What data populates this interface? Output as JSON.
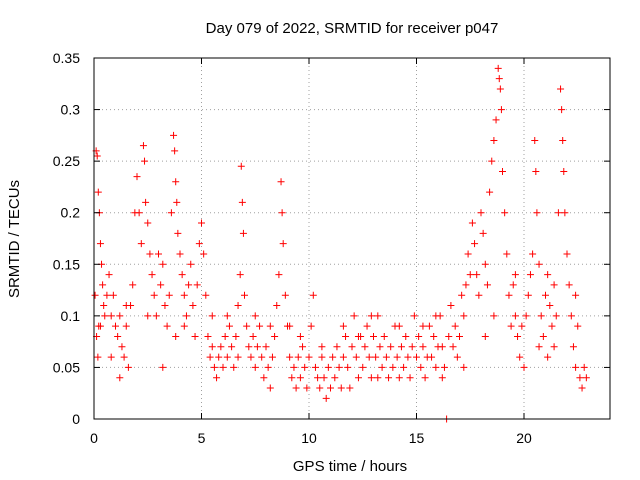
{
  "chart_data": {
    "type": "scatter",
    "title": "Day 079 of 2022, SRMTID for receiver p047",
    "xlabel": "GPS time / hours",
    "ylabel": "SRMTID / TECUs",
    "xlim": [
      0,
      24
    ],
    "ylim": [
      0,
      0.35
    ],
    "x_ticks": [
      0,
      5,
      10,
      15,
      20
    ],
    "x_tick_labels": [
      "0",
      "5",
      "10",
      "15",
      "20"
    ],
    "y_ticks": [
      0,
      0.05,
      0.1,
      0.15,
      0.2,
      0.25,
      0.3,
      0.35
    ],
    "y_tick_labels": [
      "0",
      "0.05",
      "0.1",
      "0.15",
      "0.2",
      "0.25",
      "0.3",
      "0.35"
    ],
    "grid": true,
    "marker": "+",
    "marker_color": "#ff0000",
    "series": [
      {
        "name": "SRMTID",
        "points": [
          [
            0.05,
            0.12
          ],
          [
            0.1,
            0.26
          ],
          [
            0.15,
            0.255
          ],
          [
            0.2,
            0.22
          ],
          [
            0.25,
            0.2
          ],
          [
            0.3,
            0.17
          ],
          [
            0.35,
            0.15
          ],
          [
            0.4,
            0.13
          ],
          [
            0.45,
            0.11
          ],
          [
            0.5,
            0.1
          ],
          [
            0.12,
            0.08
          ],
          [
            0.18,
            0.06
          ],
          [
            0.22,
            0.09
          ],
          [
            0.6,
            0.12
          ],
          [
            0.7,
            0.14
          ],
          [
            0.8,
            0.1
          ],
          [
            0.9,
            0.12
          ],
          [
            1.0,
            0.09
          ],
          [
            1.1,
            0.08
          ],
          [
            1.2,
            0.04
          ],
          [
            1.3,
            0.07
          ],
          [
            1.4,
            0.06
          ],
          [
            1.5,
            0.09
          ],
          [
            1.6,
            0.05
          ],
          [
            1.7,
            0.11
          ],
          [
            1.8,
            0.13
          ],
          [
            1.9,
            0.2
          ],
          [
            2.0,
            0.235
          ],
          [
            2.1,
            0.2
          ],
          [
            2.2,
            0.17
          ],
          [
            2.3,
            0.265
          ],
          [
            2.35,
            0.25
          ],
          [
            2.4,
            0.21
          ],
          [
            2.5,
            0.19
          ],
          [
            2.6,
            0.16
          ],
          [
            2.7,
            0.14
          ],
          [
            2.8,
            0.12
          ],
          [
            2.9,
            0.1
          ],
          [
            3.0,
            0.16
          ],
          [
            3.1,
            0.13
          ],
          [
            3.2,
            0.15
          ],
          [
            3.3,
            0.11
          ],
          [
            3.4,
            0.09
          ],
          [
            3.5,
            0.12
          ],
          [
            3.6,
            0.2
          ],
          [
            3.7,
            0.275
          ],
          [
            3.75,
            0.26
          ],
          [
            3.8,
            0.23
          ],
          [
            3.85,
            0.21
          ],
          [
            3.9,
            0.18
          ],
          [
            4.0,
            0.16
          ],
          [
            4.1,
            0.14
          ],
          [
            4.2,
            0.12
          ],
          [
            4.3,
            0.1
          ],
          [
            4.4,
            0.13
          ],
          [
            4.5,
            0.15
          ],
          [
            4.6,
            0.11
          ],
          [
            4.7,
            0.08
          ],
          [
            4.8,
            0.13
          ],
          [
            4.9,
            0.17
          ],
          [
            5.0,
            0.19
          ],
          [
            5.1,
            0.16
          ],
          [
            5.2,
            0.12
          ],
          [
            5.3,
            0.08
          ],
          [
            5.4,
            0.06
          ],
          [
            5.5,
            0.07
          ],
          [
            5.6,
            0.05
          ],
          [
            5.7,
            0.04
          ],
          [
            5.8,
            0.06
          ],
          [
            5.9,
            0.07
          ],
          [
            6.0,
            0.05
          ],
          [
            6.1,
            0.08
          ],
          [
            6.2,
            0.06
          ],
          [
            6.3,
            0.09
          ],
          [
            6.4,
            0.07
          ],
          [
            6.5,
            0.05
          ],
          [
            6.6,
            0.08
          ],
          [
            6.7,
            0.11
          ],
          [
            6.8,
            0.14
          ],
          [
            6.85,
            0.245
          ],
          [
            6.9,
            0.21
          ],
          [
            6.95,
            0.18
          ],
          [
            7.0,
            0.12
          ],
          [
            7.1,
            0.09
          ],
          [
            7.2,
            0.07
          ],
          [
            7.3,
            0.06
          ],
          [
            7.4,
            0.08
          ],
          [
            7.5,
            0.05
          ],
          [
            7.6,
            0.07
          ],
          [
            7.7,
            0.09
          ],
          [
            7.8,
            0.06
          ],
          [
            7.9,
            0.04
          ],
          [
            8.0,
            0.07
          ],
          [
            8.1,
            0.05
          ],
          [
            8.2,
            0.03
          ],
          [
            8.3,
            0.06
          ],
          [
            8.4,
            0.08
          ],
          [
            8.5,
            0.11
          ],
          [
            8.6,
            0.14
          ],
          [
            8.7,
            0.23
          ],
          [
            8.75,
            0.2
          ],
          [
            8.8,
            0.17
          ],
          [
            8.9,
            0.12
          ],
          [
            9.0,
            0.09
          ],
          [
            9.1,
            0.06
          ],
          [
            9.2,
            0.04
          ],
          [
            9.3,
            0.05
          ],
          [
            9.4,
            0.03
          ],
          [
            9.5,
            0.06
          ],
          [
            9.6,
            0.04
          ],
          [
            9.7,
            0.07
          ],
          [
            9.8,
            0.05
          ],
          [
            9.9,
            0.03
          ],
          [
            10.0,
            0.06
          ],
          [
            10.1,
            0.09
          ],
          [
            10.2,
            0.12
          ],
          [
            10.3,
            0.05
          ],
          [
            10.4,
            0.04
          ],
          [
            10.5,
            0.03
          ],
          [
            10.6,
            0.06
          ],
          [
            10.7,
            0.04
          ],
          [
            10.8,
            0.02
          ],
          [
            10.9,
            0.05
          ],
          [
            11.0,
            0.03
          ],
          [
            11.1,
            0.06
          ],
          [
            11.2,
            0.04
          ],
          [
            11.3,
            0.07
          ],
          [
            11.4,
            0.05
          ],
          [
            11.5,
            0.03
          ],
          [
            11.6,
            0.06
          ],
          [
            11.7,
            0.08
          ],
          [
            11.8,
            0.05
          ],
          [
            11.9,
            0.03
          ],
          [
            12.0,
            0.07
          ],
          [
            12.1,
            0.1
          ],
          [
            12.2,
            0.06
          ],
          [
            12.3,
            0.04
          ],
          [
            12.4,
            0.08
          ],
          [
            12.5,
            0.05
          ],
          [
            12.6,
            0.07
          ],
          [
            12.7,
            0.09
          ],
          [
            12.8,
            0.06
          ],
          [
            12.9,
            0.04
          ],
          [
            13.0,
            0.08
          ],
          [
            13.1,
            0.06
          ],
          [
            13.2,
            0.1
          ],
          [
            13.3,
            0.07
          ],
          [
            13.4,
            0.05
          ],
          [
            13.5,
            0.08
          ],
          [
            13.6,
            0.06
          ],
          [
            13.7,
            0.04
          ],
          [
            13.8,
            0.07
          ],
          [
            13.9,
            0.05
          ],
          [
            14.0,
            0.09
          ],
          [
            14.1,
            0.06
          ],
          [
            14.2,
            0.04
          ],
          [
            14.3,
            0.07
          ],
          [
            14.4,
            0.05
          ],
          [
            14.5,
            0.08
          ],
          [
            14.6,
            0.06
          ],
          [
            14.7,
            0.04
          ],
          [
            14.8,
            0.07
          ],
          [
            14.9,
            0.1
          ],
          [
            15.0,
            0.06
          ],
          [
            15.1,
            0.08
          ],
          [
            15.2,
            0.05
          ],
          [
            15.3,
            0.07
          ],
          [
            15.4,
            0.04
          ],
          [
            15.5,
            0.06
          ],
          [
            15.6,
            0.09
          ],
          [
            15.7,
            0.06
          ],
          [
            15.8,
            0.08
          ],
          [
            15.9,
            0.05
          ],
          [
            16.0,
            0.07
          ],
          [
            16.1,
            0.1
          ],
          [
            16.2,
            0.07
          ],
          [
            16.3,
            0.05
          ],
          [
            16.4,
            0.0
          ],
          [
            16.5,
            0.08
          ],
          [
            16.6,
            0.11
          ],
          [
            16.7,
            0.07
          ],
          [
            16.8,
            0.09
          ],
          [
            16.9,
            0.06
          ],
          [
            17.0,
            0.08
          ],
          [
            17.1,
            0.12
          ],
          [
            17.2,
            0.1
          ],
          [
            17.3,
            0.13
          ],
          [
            17.4,
            0.16
          ],
          [
            17.5,
            0.14
          ],
          [
            17.6,
            0.19
          ],
          [
            17.7,
            0.17
          ],
          [
            17.8,
            0.14
          ],
          [
            17.9,
            0.12
          ],
          [
            18.0,
            0.2
          ],
          [
            18.1,
            0.18
          ],
          [
            18.2,
            0.15
          ],
          [
            18.3,
            0.13
          ],
          [
            18.4,
            0.22
          ],
          [
            18.5,
            0.25
          ],
          [
            18.6,
            0.27
          ],
          [
            18.7,
            0.29
          ],
          [
            18.8,
            0.34
          ],
          [
            18.85,
            0.33
          ],
          [
            18.9,
            0.32
          ],
          [
            18.95,
            0.3
          ],
          [
            19.0,
            0.24
          ],
          [
            19.1,
            0.2
          ],
          [
            19.2,
            0.16
          ],
          [
            19.3,
            0.12
          ],
          [
            19.4,
            0.09
          ],
          [
            19.5,
            0.13
          ],
          [
            19.6,
            0.1
          ],
          [
            19.7,
            0.08
          ],
          [
            19.8,
            0.06
          ],
          [
            19.9,
            0.09
          ],
          [
            20.0,
            0.05
          ],
          [
            20.1,
            0.1
          ],
          [
            20.2,
            0.12
          ],
          [
            20.3,
            0.14
          ],
          [
            20.4,
            0.16
          ],
          [
            20.5,
            0.27
          ],
          [
            20.55,
            0.24
          ],
          [
            20.6,
            0.2
          ],
          [
            20.7,
            0.15
          ],
          [
            20.8,
            0.1
          ],
          [
            20.9,
            0.08
          ],
          [
            21.0,
            0.12
          ],
          [
            21.1,
            0.14
          ],
          [
            21.2,
            0.11
          ],
          [
            21.3,
            0.09
          ],
          [
            21.4,
            0.07
          ],
          [
            21.5,
            0.1
          ],
          [
            21.6,
            0.2
          ],
          [
            21.7,
            0.32
          ],
          [
            21.75,
            0.3
          ],
          [
            21.8,
            0.27
          ],
          [
            21.85,
            0.24
          ],
          [
            21.9,
            0.2
          ],
          [
            22.0,
            0.16
          ],
          [
            22.1,
            0.13
          ],
          [
            22.2,
            0.1
          ],
          [
            22.3,
            0.07
          ],
          [
            22.4,
            0.05
          ],
          [
            22.5,
            0.09
          ],
          [
            22.6,
            0.04
          ],
          [
            22.7,
            0.03
          ],
          [
            22.8,
            0.05
          ],
          [
            22.9,
            0.04
          ],
          [
            0.3,
            0.09
          ],
          [
            0.8,
            0.06
          ],
          [
            1.5,
            0.11
          ],
          [
            2.5,
            0.1
          ],
          [
            3.2,
            0.05
          ],
          [
            4.2,
            0.09
          ],
          [
            5.5,
            0.1
          ],
          [
            6.2,
            0.1
          ],
          [
            7.5,
            0.1
          ],
          [
            8.2,
            0.09
          ],
          [
            9.6,
            0.08
          ],
          [
            10.6,
            0.07
          ],
          [
            11.6,
            0.09
          ],
          [
            12.3,
            0.08
          ],
          [
            13.2,
            0.04
          ],
          [
            14.2,
            0.09
          ],
          [
            15.3,
            0.09
          ],
          [
            16.2,
            0.04
          ],
          [
            17.2,
            0.05
          ],
          [
            18.2,
            0.08
          ],
          [
            19.6,
            0.14
          ],
          [
            20.7,
            0.07
          ],
          [
            21.4,
            0.13
          ],
          [
            22.4,
            0.12
          ],
          [
            1.2,
            0.1
          ],
          [
            3.8,
            0.08
          ],
          [
            6.7,
            0.06
          ],
          [
            9.1,
            0.09
          ],
          [
            12.9,
            0.1
          ],
          [
            15.9,
            0.1
          ],
          [
            18.6,
            0.1
          ],
          [
            21.1,
            0.06
          ]
        ]
      }
    ]
  }
}
